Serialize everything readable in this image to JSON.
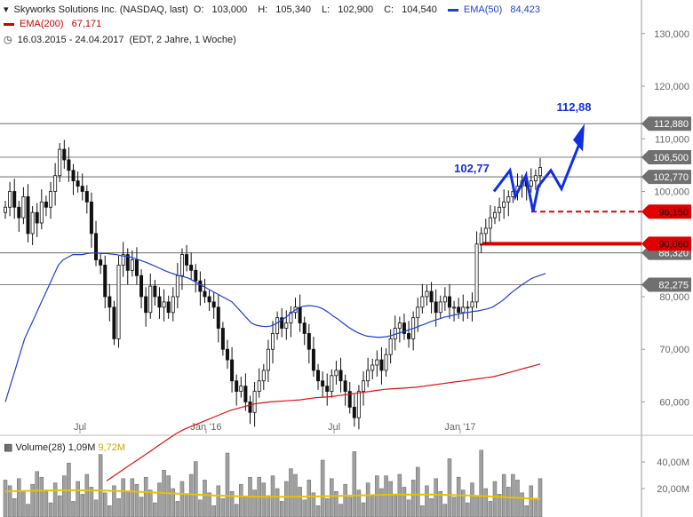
{
  "header": {
    "title": "Skyworks Solutions Inc. (NASDAQ, last)",
    "ohlc": {
      "o_label": "O:",
      "o": "103,000",
      "h_label": "H:",
      "h": "105,340",
      "l_label": "L:",
      "l": "102,900",
      "c_label": "C:",
      "c": "104,540"
    },
    "ema50_label": "EMA(50)",
    "ema50_value": "84,423",
    "ema200_label": "EMA(200)",
    "ema200_value": "67,171",
    "range": "16.03.2015 - 24.04.2017",
    "period": "(EDT, 2 Jahre, 1 Woche)"
  },
  "volume_panel": {
    "label": "Volume(28)",
    "value": "1,09M",
    "avg": "9,72M",
    "ticks": [
      "40,00M",
      "20,00M"
    ]
  },
  "colors": {
    "ema50": "#1f3fd6",
    "ema200": "#e01010",
    "projection": "#1030e0",
    "support": "#e00000",
    "volume_avg": "#e6c200",
    "volume_bar": "#a0a0a0"
  },
  "chart_data": {
    "type": "candlestick",
    "ylim": [
      54,
      133
    ],
    "y_ticks": [
      "130,000",
      "120,000",
      "110,000",
      "100,000",
      "90,000",
      "80,000",
      "70,000",
      "60,000"
    ],
    "y_tick_values": [
      130,
      120,
      110,
      100,
      90,
      80,
      70,
      60
    ],
    "x_tick_labels": [
      "Jul",
      "Jan '16",
      "Jul",
      "Jan '17"
    ],
    "horizontal_levels": [
      {
        "label": "112,880",
        "value": 112.88,
        "style": "gray"
      },
      {
        "label": "106,500",
        "value": 106.5,
        "style": "gray"
      },
      {
        "label": "102,770",
        "value": 102.77,
        "style": "gray"
      },
      {
        "label": "88,320",
        "value": 88.32,
        "style": "gray"
      },
      {
        "label": "82,275",
        "value": 82.275,
        "style": "gray"
      },
      {
        "label": "96,150",
        "value": 96.15,
        "style": "red-dashed"
      },
      {
        "label": "90,060",
        "value": 90.06,
        "style": "red-solid"
      }
    ],
    "annotations": [
      {
        "text": "112,88",
        "value": 112.88
      },
      {
        "text": "102,77",
        "value": 102.77
      }
    ],
    "close": [
      97,
      100,
      97,
      95,
      99,
      92,
      96,
      94,
      98,
      97,
      100,
      103,
      108,
      106,
      104,
      102,
      101,
      100,
      98,
      92,
      87,
      86,
      80,
      78,
      72,
      86,
      88,
      85,
      87,
      84,
      80,
      77,
      82,
      80,
      78,
      79,
      77,
      80,
      84,
      88,
      86,
      85,
      83,
      81,
      80,
      79,
      78,
      74,
      70,
      68,
      64,
      62,
      63,
      60,
      58,
      62,
      64,
      66,
      70,
      73,
      76,
      74,
      75,
      77,
      78,
      75,
      73,
      70,
      66,
      64,
      63,
      62,
      65,
      66,
      64,
      62,
      59,
      57,
      62,
      64,
      66,
      67,
      68,
      66,
      69,
      72,
      74,
      75,
      73,
      72,
      76,
      78,
      80,
      81,
      79,
      77,
      79,
      80,
      78,
      78,
      77,
      78,
      78,
      79,
      90,
      92,
      93,
      95,
      96,
      97,
      98,
      99,
      100,
      101,
      102,
      101,
      102,
      103,
      104.54
    ],
    "ema50": [
      60,
      63,
      66,
      69,
      72,
      74,
      76,
      78,
      80,
      82,
      84,
      86,
      87,
      87.5,
      88,
      88,
      88,
      88.2,
      88.3,
      88.3,
      88.2,
      88.2,
      88.1,
      88,
      87.8,
      87.7,
      87.5,
      87.2,
      86.9,
      86.6,
      86.2,
      85.8,
      85.4,
      85,
      84.6,
      84.3,
      84,
      83.8,
      83.5,
      83,
      82.5,
      82,
      81.5,
      81,
      80.5,
      80,
      79.5,
      79,
      78,
      77,
      76,
      75,
      74.6,
      74.4,
      74.3,
      74.4,
      74.8,
      75.4,
      76,
      76.7,
      77.4,
      78,
      78.2,
      78.3,
      78.2,
      78,
      77.6,
      77,
      76.3,
      75.7,
      75,
      74.3,
      73.7,
      73.2,
      72.8,
      72.5,
      72.4,
      72.3,
      72.3,
      72.4,
      72.6,
      72.9,
      73.2,
      73.5,
      73.8,
      74.1,
      74.5,
      74.8,
      75.2,
      75.5,
      75.8,
      76.1,
      76.3,
      76.5,
      76.7,
      76.9,
      77,
      77.2,
      77.3,
      77.5,
      77.7,
      78,
      78.6,
      79.2,
      80,
      80.8,
      81.5,
      82.2,
      82.8,
      83.4,
      83.8,
      84.1,
      84.4
    ],
    "ema200": [
      45,
      46,
      47,
      48,
      49,
      50,
      51,
      52,
      53,
      54,
      54.8,
      55.4,
      56,
      56.6,
      57.2,
      57.8,
      58.4,
      58.8,
      59.2,
      59.6,
      59.8,
      60,
      60.1,
      60.2,
      60.3,
      60.4,
      60.6,
      60.8,
      60.9,
      61,
      61.2,
      61.4,
      61.6,
      61.8,
      62,
      62.2,
      62.4,
      62.5,
      62.6,
      62.7,
      62.8,
      63,
      63.2,
      63.4,
      63.6,
      63.8,
      64,
      64.2,
      64.4,
      64.6,
      64.8,
      65.2,
      65.6,
      66,
      66.4,
      66.8,
      67.2
    ]
  }
}
